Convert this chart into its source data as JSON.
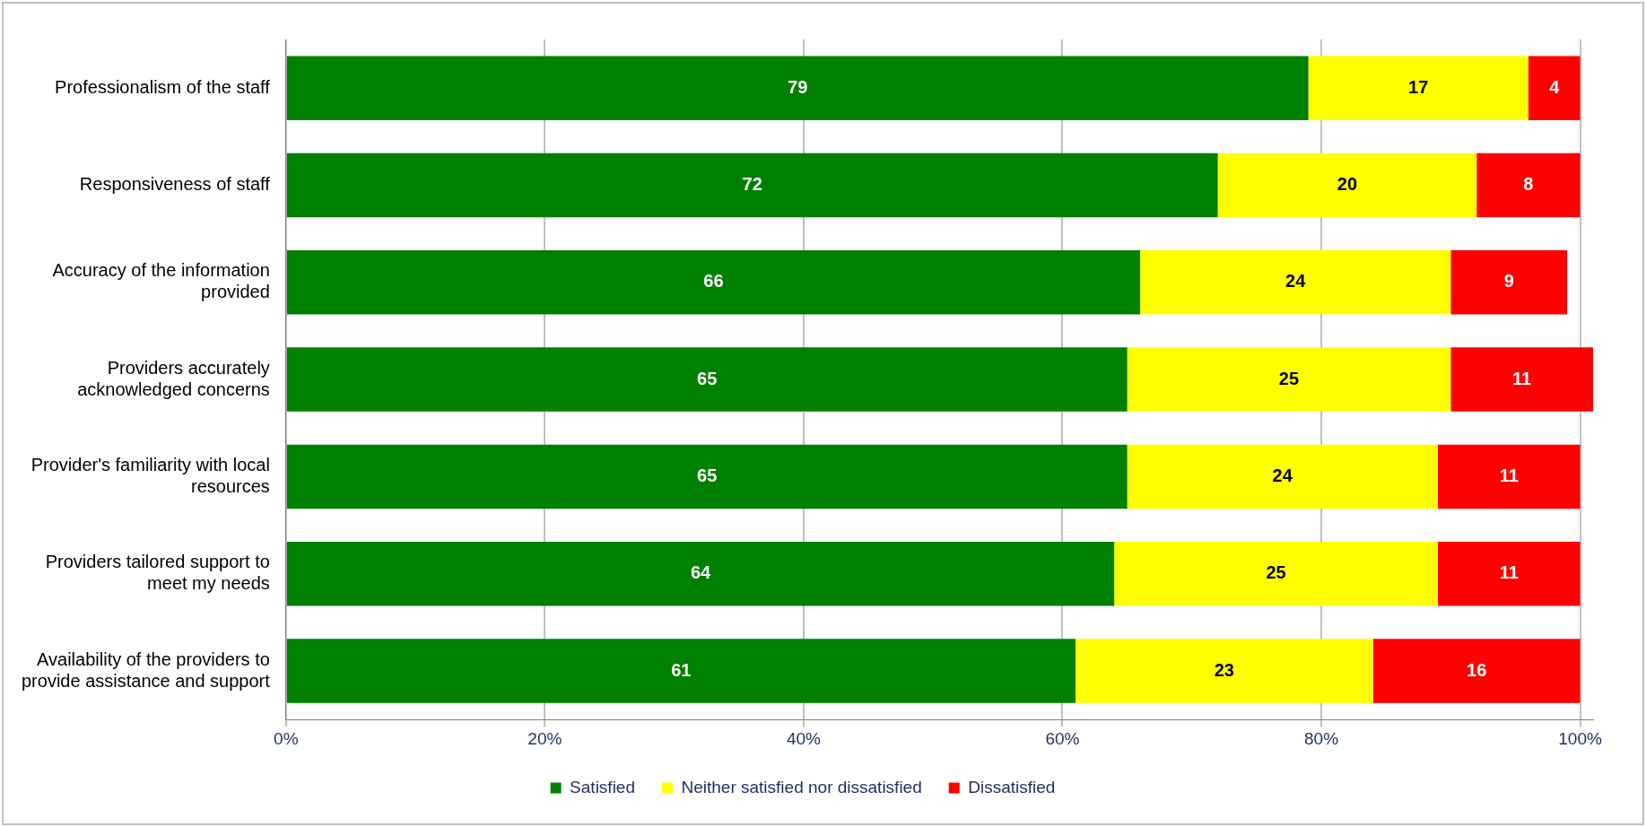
{
  "chart_data": {
    "type": "bar",
    "orientation": "horizontal",
    "stacked": true,
    "categories": [
      "Professionalism of the staff",
      "Responsiveness of staff",
      "Accuracy of the information provided",
      "Providers accurately acknowledged concerns",
      "Provider's familiarity with local resources",
      "Providers tailored support to meet my needs",
      "Availability of the providers to provide assistance and support"
    ],
    "series": [
      {
        "name": "Satisfied",
        "color": "#008000",
        "values": [
          79,
          72,
          66,
          65,
          65,
          64,
          61
        ]
      },
      {
        "name": "Neither satisfied nor dissatisfied",
        "color": "#ffff00",
        "values": [
          17,
          20,
          24,
          25,
          24,
          25,
          23
        ]
      },
      {
        "name": "Dissatisfied",
        "color": "#ff0000",
        "values": [
          4,
          8,
          9,
          11,
          11,
          11,
          16
        ]
      }
    ],
    "xlim": [
      0,
      101
    ],
    "xticks": [
      {
        "value": 0,
        "label": "0%"
      },
      {
        "value": 20,
        "label": "20%"
      },
      {
        "value": 40,
        "label": "40%"
      },
      {
        "value": 60,
        "label": "60%"
      },
      {
        "value": 80,
        "label": "80%"
      },
      {
        "value": 100,
        "label": "100%"
      }
    ],
    "grid": "x",
    "legend": "bottom",
    "data_labels": true
  }
}
